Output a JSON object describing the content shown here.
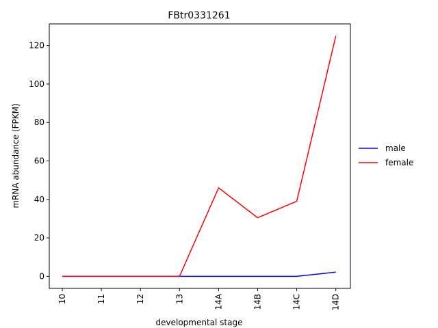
{
  "chart_data": {
    "type": "line",
    "title": "FBtr0331261",
    "xlabel": "developmental stage",
    "ylabel": "mRNA abundance (FPKM)",
    "categories": [
      "10",
      "11",
      "12",
      "13",
      "14A",
      "14B",
      "14C",
      "14D"
    ],
    "series": [
      {
        "name": "male",
        "color": "#0000ff",
        "values": [
          0,
          0,
          0,
          0,
          0,
          0,
          0,
          2.2
        ]
      },
      {
        "name": "female",
        "color": "#ff0000",
        "values": [
          0,
          0,
          0,
          0,
          46,
          30.5,
          39,
          125
        ]
      }
    ],
    "ylim": [
      -6.25,
      131.25
    ],
    "yticks": [
      0,
      20,
      40,
      60,
      80,
      100,
      120
    ],
    "grid": false,
    "legend_position": "right"
  }
}
